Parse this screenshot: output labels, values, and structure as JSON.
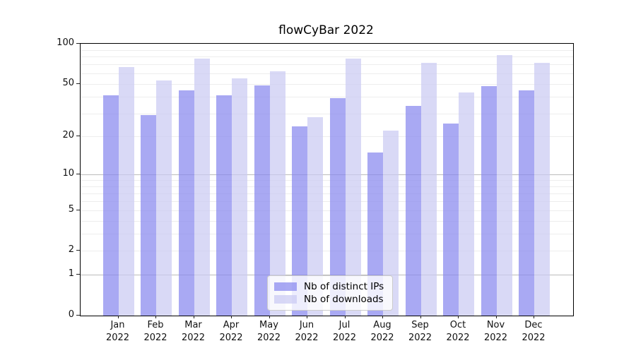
{
  "figure": {
    "title": "flowCyBar 2022"
  },
  "chart_data": {
    "type": "bar",
    "title": "flowCyBar 2022",
    "xlabel": "",
    "ylabel": "",
    "categories": [
      "Jan 2022",
      "Feb 2022",
      "Mar 2022",
      "Apr 2022",
      "May 2022",
      "Jun 2022",
      "Jul 2022",
      "Aug 2022",
      "Sep 2022",
      "Oct 2022",
      "Nov 2022",
      "Dec 2022"
    ],
    "series": [
      {
        "name": "Nb of distinct IPs",
        "color": "#8888ee",
        "values": [
          41,
          29,
          45,
          41,
          49,
          24,
          39,
          15,
          34,
          25,
          48,
          45
        ]
      },
      {
        "name": "Nb of downloads",
        "color": "#cacaf3",
        "values": [
          67,
          53,
          78,
          55,
          62,
          28,
          78,
          22,
          72,
          43,
          82,
          72
        ]
      }
    ],
    "bar_alpha": 0.72,
    "yscale": "log1p",
    "ylim": [
      0,
      100
    ],
    "yticks": [
      0,
      1,
      2,
      5,
      10,
      20,
      50,
      100
    ],
    "grid": {
      "major_at": [
        1,
        10
      ],
      "minor_at": [
        2,
        3,
        4,
        5,
        6,
        7,
        8,
        9,
        20,
        30,
        40,
        50,
        60,
        70,
        80,
        90
      ],
      "major_color": "#bbbbbb",
      "minor_color": "#ededed"
    },
    "legend_position": "lower center inside"
  },
  "legend": {
    "items": [
      {
        "label": "Nb of distinct IPs",
        "color": "#8888ee"
      },
      {
        "label": "Nb of downloads",
        "color": "#cacaf3"
      }
    ]
  }
}
